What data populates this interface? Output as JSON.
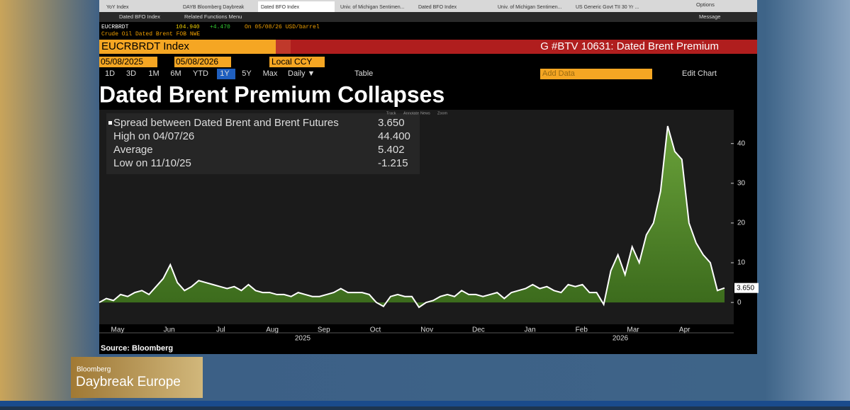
{
  "tabs": [
    "YoY Index",
    "DAYB Bloomberg Daybreak",
    "Dated BFO Index",
    "Univ. of Michigan Sentimen...",
    "Dated BFO Index",
    "Univ. of Michigan Sentimen...",
    "US Generic Govt TII 30 Yr ..."
  ],
  "toolbar": {
    "window": "Dated BFO Index",
    "menu": "Related Functions Menu",
    "options": "Options",
    "message": "Message"
  },
  "ticker": {
    "symbol": "EUCRBRDT",
    "price": "104.940",
    "change": "+4.470",
    "date": "On 05/08/26 USD/barrel",
    "description": "Crude Oil Dated Brent FOB NWE"
  },
  "security": "EUCRBRDT Index",
  "page_title": "G #BTV 10631: Dated Brent Premium",
  "start_date": "05/08/2025",
  "end_date": "05/08/2026",
  "currency": "Local CCY",
  "periods": [
    "1D",
    "3D",
    "1M",
    "6M",
    "YTD",
    "1Y",
    "5Y",
    "Max"
  ],
  "frequency": "Daily ▼",
  "table_button": "Table",
  "add_data": "Add Data",
  "edit_chart": "Edit Chart",
  "chart_tools": [
    "Track",
    "Annotate",
    "News",
    "Zoom"
  ],
  "chart_data": {
    "type": "line",
    "title": "Dated Brent Premium Collapses",
    "stats": [
      {
        "label": "Spread between Dated Brent and Brent Futures",
        "value": "3.650"
      },
      {
        "label": "High on 04/07/26",
        "value": "44.400"
      },
      {
        "label": "Average",
        "value": "5.402"
      },
      {
        "label": "Low on 11/10/25",
        "value": "-1.215"
      }
    ],
    "months": [
      "May",
      "Jun",
      "Jul",
      "Aug",
      "Sep",
      "Oct",
      "Nov",
      "Dec",
      "Jan",
      "Feb",
      "Mar",
      "Apr"
    ],
    "years": [
      "2025",
      "2026"
    ],
    "series": [
      {
        "name": "Spread between Dated Brent and Brent Futures",
        "color": "#5a8a2a",
        "values": [
          0,
          1,
          0.5,
          2,
          1.5,
          2.5,
          3,
          2,
          4,
          6,
          9.5,
          5,
          3,
          4,
          5.5,
          5,
          4.5,
          4,
          3.5,
          4,
          3,
          4.5,
          3,
          2.5,
          2.5,
          2,
          2,
          1.5,
          2.5,
          2,
          1.5,
          1.5,
          2,
          2.5,
          3.5,
          2.5,
          2.5,
          2.5,
          2,
          0,
          -1,
          1.5,
          2,
          1.5,
          1.5,
          -1.215,
          0,
          0.5,
          1.5,
          2,
          1.5,
          3,
          2,
          2,
          1.5,
          2,
          2.5,
          1,
          2.5,
          3,
          3.5,
          4.5,
          3.5,
          4,
          3,
          2.5,
          4.5,
          4,
          4.5,
          2.5,
          2.5,
          -0.5,
          8,
          12,
          7,
          14,
          10,
          17,
          20,
          28,
          44.4,
          38,
          36,
          20,
          15,
          12,
          10,
          3,
          3.65
        ],
        "last_label": "3.650"
      }
    ],
    "ylim": [
      -5.5,
      48.5
    ],
    "yticks": [
      0,
      10,
      20,
      30,
      40
    ],
    "source": "Source: Bloomberg"
  },
  "logo": {
    "brand": "Bloomberg",
    "show": "Daybreak Europe"
  }
}
